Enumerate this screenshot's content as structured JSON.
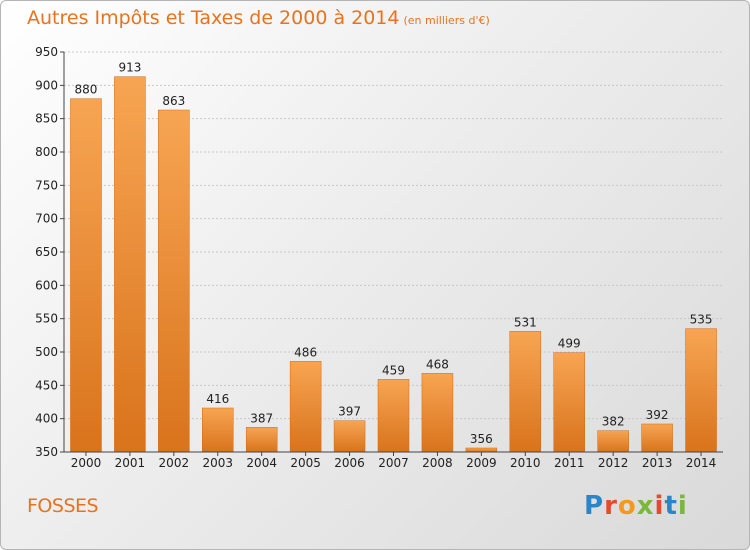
{
  "title": "Autres Impôts et Taxes de 2000 à 2014",
  "subtitle": "(en milliers d'€)",
  "city": "FOSSES",
  "logo": {
    "text": "Proxiti",
    "letters": [
      "P",
      "r",
      "o",
      "x",
      "i",
      "t",
      "i"
    ],
    "colors": [
      "#2a86c8",
      "#e64a2e",
      "#f39a1e",
      "#7ab83a",
      "#e64a2e",
      "#2a86c8",
      "#7ab83a"
    ]
  },
  "colors": {
    "accent": "#e8731c",
    "bar_top": "#f7a553",
    "bar_bottom": "#d9731c"
  },
  "chart_data": {
    "type": "bar",
    "title": "Autres Impôts et Taxes de 2000 à 2014",
    "subtitle": "(en milliers d'€)",
    "categories": [
      "2000",
      "2001",
      "2002",
      "2003",
      "2004",
      "2005",
      "2006",
      "2007",
      "2008",
      "2009",
      "2010",
      "2011",
      "2012",
      "2013",
      "2014"
    ],
    "values": [
      880,
      913,
      863,
      416,
      387,
      486,
      397,
      459,
      468,
      356,
      531,
      499,
      382,
      392,
      535
    ],
    "ylim": [
      350,
      950
    ],
    "yticks": [
      350,
      400,
      450,
      500,
      550,
      600,
      650,
      700,
      750,
      800,
      850,
      900,
      950
    ],
    "grid": true,
    "xlabel": "",
    "ylabel": ""
  }
}
